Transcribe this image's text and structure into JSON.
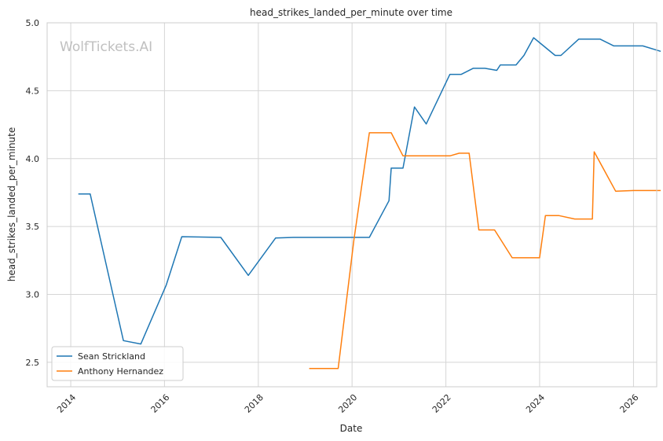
{
  "watermark": "WolfTickets.AI",
  "chart_data": {
    "type": "line",
    "title": "head_strikes_landed_per_minute over time",
    "xlabel": "Date",
    "ylabel": "head_strikes_landed_per_minute",
    "x_axis_type": "date",
    "xlim": [
      "2013-07-01",
      "2026-07-01"
    ],
    "ylim": [
      2.32,
      5.0
    ],
    "x_ticks": [
      "2014",
      "2016",
      "2018",
      "2020",
      "2022",
      "2024",
      "2026"
    ],
    "y_ticks": [
      "2.5",
      "3.0",
      "3.5",
      "4.0",
      "4.5",
      "5.0"
    ],
    "grid": true,
    "legend_position": "bottom-left",
    "series": [
      {
        "name": "Sean Strickland",
        "color": "#1f77b4",
        "points": [
          [
            "2014-03-01",
            3.74
          ],
          [
            "2014-06-01",
            3.74
          ],
          [
            "2015-02-15",
            2.66
          ],
          [
            "2015-07-01",
            2.635
          ],
          [
            "2016-01-15",
            3.07
          ],
          [
            "2016-05-15",
            3.425
          ],
          [
            "2017-03-15",
            3.42
          ],
          [
            "2017-10-15",
            3.14
          ],
          [
            "2018-05-15",
            3.415
          ],
          [
            "2018-10-01",
            3.42
          ],
          [
            "2020-04-01",
            3.42
          ],
          [
            "2020-05-15",
            3.42
          ],
          [
            "2020-10-15",
            3.69
          ],
          [
            "2020-11-01",
            3.93
          ],
          [
            "2021-02-01",
            3.93
          ],
          [
            "2021-05-01",
            4.38
          ],
          [
            "2021-08-01",
            4.255
          ],
          [
            "2022-02-01",
            4.62
          ],
          [
            "2022-05-01",
            4.62
          ],
          [
            "2022-08-01",
            4.665
          ],
          [
            "2022-11-01",
            4.665
          ],
          [
            "2023-02-01",
            4.65
          ],
          [
            "2023-03-01",
            4.69
          ],
          [
            "2023-07-01",
            4.69
          ],
          [
            "2023-09-01",
            4.76
          ],
          [
            "2023-11-15",
            4.89
          ],
          [
            "2024-05-01",
            4.76
          ],
          [
            "2024-06-15",
            4.76
          ],
          [
            "2024-11-01",
            4.88
          ],
          [
            "2025-04-15",
            4.88
          ],
          [
            "2025-08-01",
            4.83
          ],
          [
            "2026-03-15",
            4.83
          ],
          [
            "2026-08-01",
            4.79
          ]
        ]
      },
      {
        "name": "Anthony Hernandez",
        "color": "#ff7f0e",
        "points": [
          [
            "2019-02-01",
            2.455
          ],
          [
            "2019-09-15",
            2.455
          ],
          [
            "2020-01-15",
            3.4
          ],
          [
            "2020-05-15",
            4.19
          ],
          [
            "2020-11-01",
            4.19
          ],
          [
            "2021-02-01",
            4.02
          ],
          [
            "2022-02-01",
            4.02
          ],
          [
            "2022-04-15",
            4.04
          ],
          [
            "2022-07-01",
            4.04
          ],
          [
            "2022-09-15",
            3.475
          ],
          [
            "2023-01-15",
            3.475
          ],
          [
            "2023-06-01",
            3.27
          ],
          [
            "2024-01-01",
            3.27
          ],
          [
            "2024-02-15",
            3.58
          ],
          [
            "2024-06-01",
            3.58
          ],
          [
            "2024-10-01",
            3.555
          ],
          [
            "2025-02-15",
            3.555
          ],
          [
            "2025-03-01",
            4.05
          ],
          [
            "2025-08-15",
            3.76
          ],
          [
            "2026-01-01",
            3.765
          ],
          [
            "2026-08-01",
            3.765
          ]
        ]
      }
    ]
  }
}
